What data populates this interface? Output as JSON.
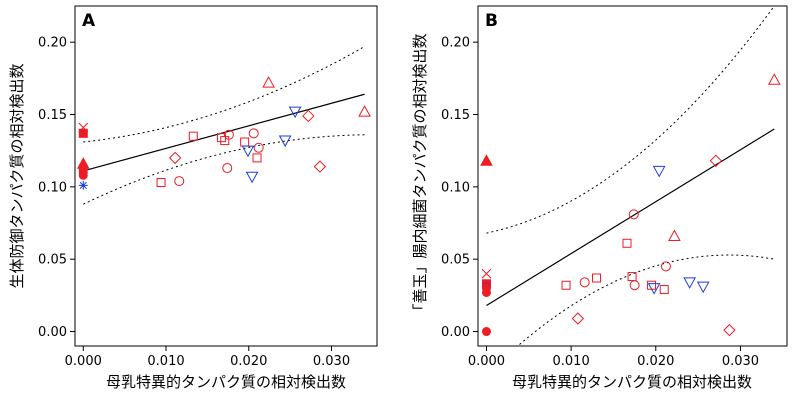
{
  "chart_data": [
    {
      "type": "scatter",
      "panel_label": "A",
      "xlabel": "母乳特異的タンパク質の相対検出数",
      "ylabel": "生体防御タンパク質の相対検出数",
      "xlim": [
        -0.001,
        0.0355
      ],
      "ylim": [
        -0.01,
        0.225
      ],
      "x_ticks": [
        "0.000",
        "0.010",
        "0.020",
        "0.030"
      ],
      "y_ticks": [
        "0.00",
        "0.05",
        "0.10",
        "0.15",
        "0.20"
      ],
      "grid": false,
      "colors": {
        "red": "#ee1c25",
        "blue": "#1d3bd9"
      },
      "regression": {
        "x": [
          0.0,
          0.034
        ],
        "fit": [
          0.111,
          0.164
        ],
        "upper": [
          0.131,
          0.197
        ],
        "lower": [
          0.088,
          0.136
        ]
      },
      "points": [
        {
          "x": 0.0,
          "y": 0.141,
          "shape": "x",
          "color": "red"
        },
        {
          "x": 0.0,
          "y": 0.137,
          "shape": "square-filled",
          "color": "red"
        },
        {
          "x": 0.0,
          "y": 0.116,
          "shape": "triangle-up-filled",
          "color": "red"
        },
        {
          "x": 0.0,
          "y": 0.114,
          "shape": "circle-filled",
          "color": "red"
        },
        {
          "x": 0.0,
          "y": 0.112,
          "shape": "circle-filled",
          "color": "red"
        },
        {
          "x": 0.0,
          "y": 0.11,
          "shape": "circle-filled",
          "color": "red"
        },
        {
          "x": 0.0,
          "y": 0.108,
          "shape": "circle-filled",
          "color": "red"
        },
        {
          "x": 0.0,
          "y": 0.101,
          "shape": "asterisk",
          "color": "blue"
        },
        {
          "x": 0.0094,
          "y": 0.103,
          "shape": "square",
          "color": "red"
        },
        {
          "x": 0.0111,
          "y": 0.12,
          "shape": "diamond",
          "color": "red"
        },
        {
          "x": 0.0116,
          "y": 0.104,
          "shape": "circle",
          "color": "red"
        },
        {
          "x": 0.0133,
          "y": 0.135,
          "shape": "square",
          "color": "red"
        },
        {
          "x": 0.0167,
          "y": 0.134,
          "shape": "square",
          "color": "red"
        },
        {
          "x": 0.0171,
          "y": 0.132,
          "shape": "square",
          "color": "red"
        },
        {
          "x": 0.0174,
          "y": 0.113,
          "shape": "circle",
          "color": "red"
        },
        {
          "x": 0.0176,
          "y": 0.136,
          "shape": "circle",
          "color": "red"
        },
        {
          "x": 0.0195,
          "y": 0.131,
          "shape": "square",
          "color": "red"
        },
        {
          "x": 0.0199,
          "y": 0.125,
          "shape": "triangle-down",
          "color": "blue"
        },
        {
          "x": 0.0206,
          "y": 0.137,
          "shape": "circle",
          "color": "red"
        },
        {
          "x": 0.0204,
          "y": 0.107,
          "shape": "triangle-down",
          "color": "blue"
        },
        {
          "x": 0.0212,
          "y": 0.127,
          "shape": "circle",
          "color": "red"
        },
        {
          "x": 0.021,
          "y": 0.12,
          "shape": "square",
          "color": "red"
        },
        {
          "x": 0.0224,
          "y": 0.172,
          "shape": "triangle-up",
          "color": "red"
        },
        {
          "x": 0.0244,
          "y": 0.132,
          "shape": "triangle-down",
          "color": "blue"
        },
        {
          "x": 0.0256,
          "y": 0.152,
          "shape": "triangle-down",
          "color": "blue"
        },
        {
          "x": 0.0272,
          "y": 0.149,
          "shape": "diamond",
          "color": "red"
        },
        {
          "x": 0.0286,
          "y": 0.114,
          "shape": "diamond",
          "color": "red"
        },
        {
          "x": 0.034,
          "y": 0.152,
          "shape": "triangle-up",
          "color": "red"
        }
      ]
    },
    {
      "type": "scatter",
      "panel_label": "B",
      "xlabel": "母乳特異的タンパク質の相対検出数",
      "ylabel": "「善玉」腸内細菌タンパク質の相対検出数",
      "xlim": [
        -0.001,
        0.0355
      ],
      "ylim": [
        -0.01,
        0.225
      ],
      "x_ticks": [
        "0.000",
        "0.010",
        "0.020",
        "0.030"
      ],
      "y_ticks": [
        "0.00",
        "0.05",
        "0.10",
        "0.15",
        "0.20"
      ],
      "grid": false,
      "colors": {
        "red": "#ee1c25",
        "blue": "#1d3bd9"
      },
      "regression": {
        "x": [
          0.0,
          0.034
        ],
        "fit": [
          0.018,
          0.14
        ],
        "upper": [
          0.068,
          0.225
        ],
        "lower": [
          -0.03,
          0.05
        ]
      },
      "points": [
        {
          "x": 0.0,
          "y": 0.118,
          "shape": "triangle-up-filled",
          "color": "red"
        },
        {
          "x": 0.0,
          "y": 0.04,
          "shape": "x",
          "color": "red"
        },
        {
          "x": 0.0,
          "y": 0.033,
          "shape": "square-filled",
          "color": "red"
        },
        {
          "x": 0.0,
          "y": 0.031,
          "shape": "asterisk",
          "color": "blue"
        },
        {
          "x": 0.0,
          "y": 0.03,
          "shape": "circle-filled",
          "color": "red"
        },
        {
          "x": 0.0,
          "y": 0.027,
          "shape": "circle-filled",
          "color": "red"
        },
        {
          "x": 0.0,
          "y": 0.0,
          "shape": "circle-filled",
          "color": "red"
        },
        {
          "x": 0.0094,
          "y": 0.032,
          "shape": "square",
          "color": "red"
        },
        {
          "x": 0.0108,
          "y": 0.009,
          "shape": "diamond",
          "color": "red"
        },
        {
          "x": 0.0116,
          "y": 0.034,
          "shape": "circle",
          "color": "red"
        },
        {
          "x": 0.013,
          "y": 0.037,
          "shape": "square",
          "color": "red"
        },
        {
          "x": 0.0166,
          "y": 0.061,
          "shape": "square",
          "color": "red"
        },
        {
          "x": 0.0172,
          "y": 0.038,
          "shape": "square",
          "color": "red"
        },
        {
          "x": 0.0174,
          "y": 0.081,
          "shape": "circle",
          "color": "red"
        },
        {
          "x": 0.0175,
          "y": 0.032,
          "shape": "circle",
          "color": "red"
        },
        {
          "x": 0.0195,
          "y": 0.032,
          "shape": "square",
          "color": "red"
        },
        {
          "x": 0.0198,
          "y": 0.03,
          "shape": "triangle-down",
          "color": "blue"
        },
        {
          "x": 0.0204,
          "y": 0.111,
          "shape": "triangle-down",
          "color": "blue"
        },
        {
          "x": 0.021,
          "y": 0.029,
          "shape": "square",
          "color": "red"
        },
        {
          "x": 0.0212,
          "y": 0.045,
          "shape": "circle",
          "color": "red"
        },
        {
          "x": 0.0222,
          "y": 0.066,
          "shape": "triangle-up",
          "color": "red"
        },
        {
          "x": 0.024,
          "y": 0.034,
          "shape": "triangle-down",
          "color": "blue"
        },
        {
          "x": 0.0256,
          "y": 0.031,
          "shape": "triangle-down",
          "color": "blue"
        },
        {
          "x": 0.0271,
          "y": 0.118,
          "shape": "diamond",
          "color": "red"
        },
        {
          "x": 0.0287,
          "y": 0.001,
          "shape": "diamond",
          "color": "red"
        },
        {
          "x": 0.034,
          "y": 0.174,
          "shape": "triangle-up",
          "color": "red"
        }
      ]
    }
  ]
}
